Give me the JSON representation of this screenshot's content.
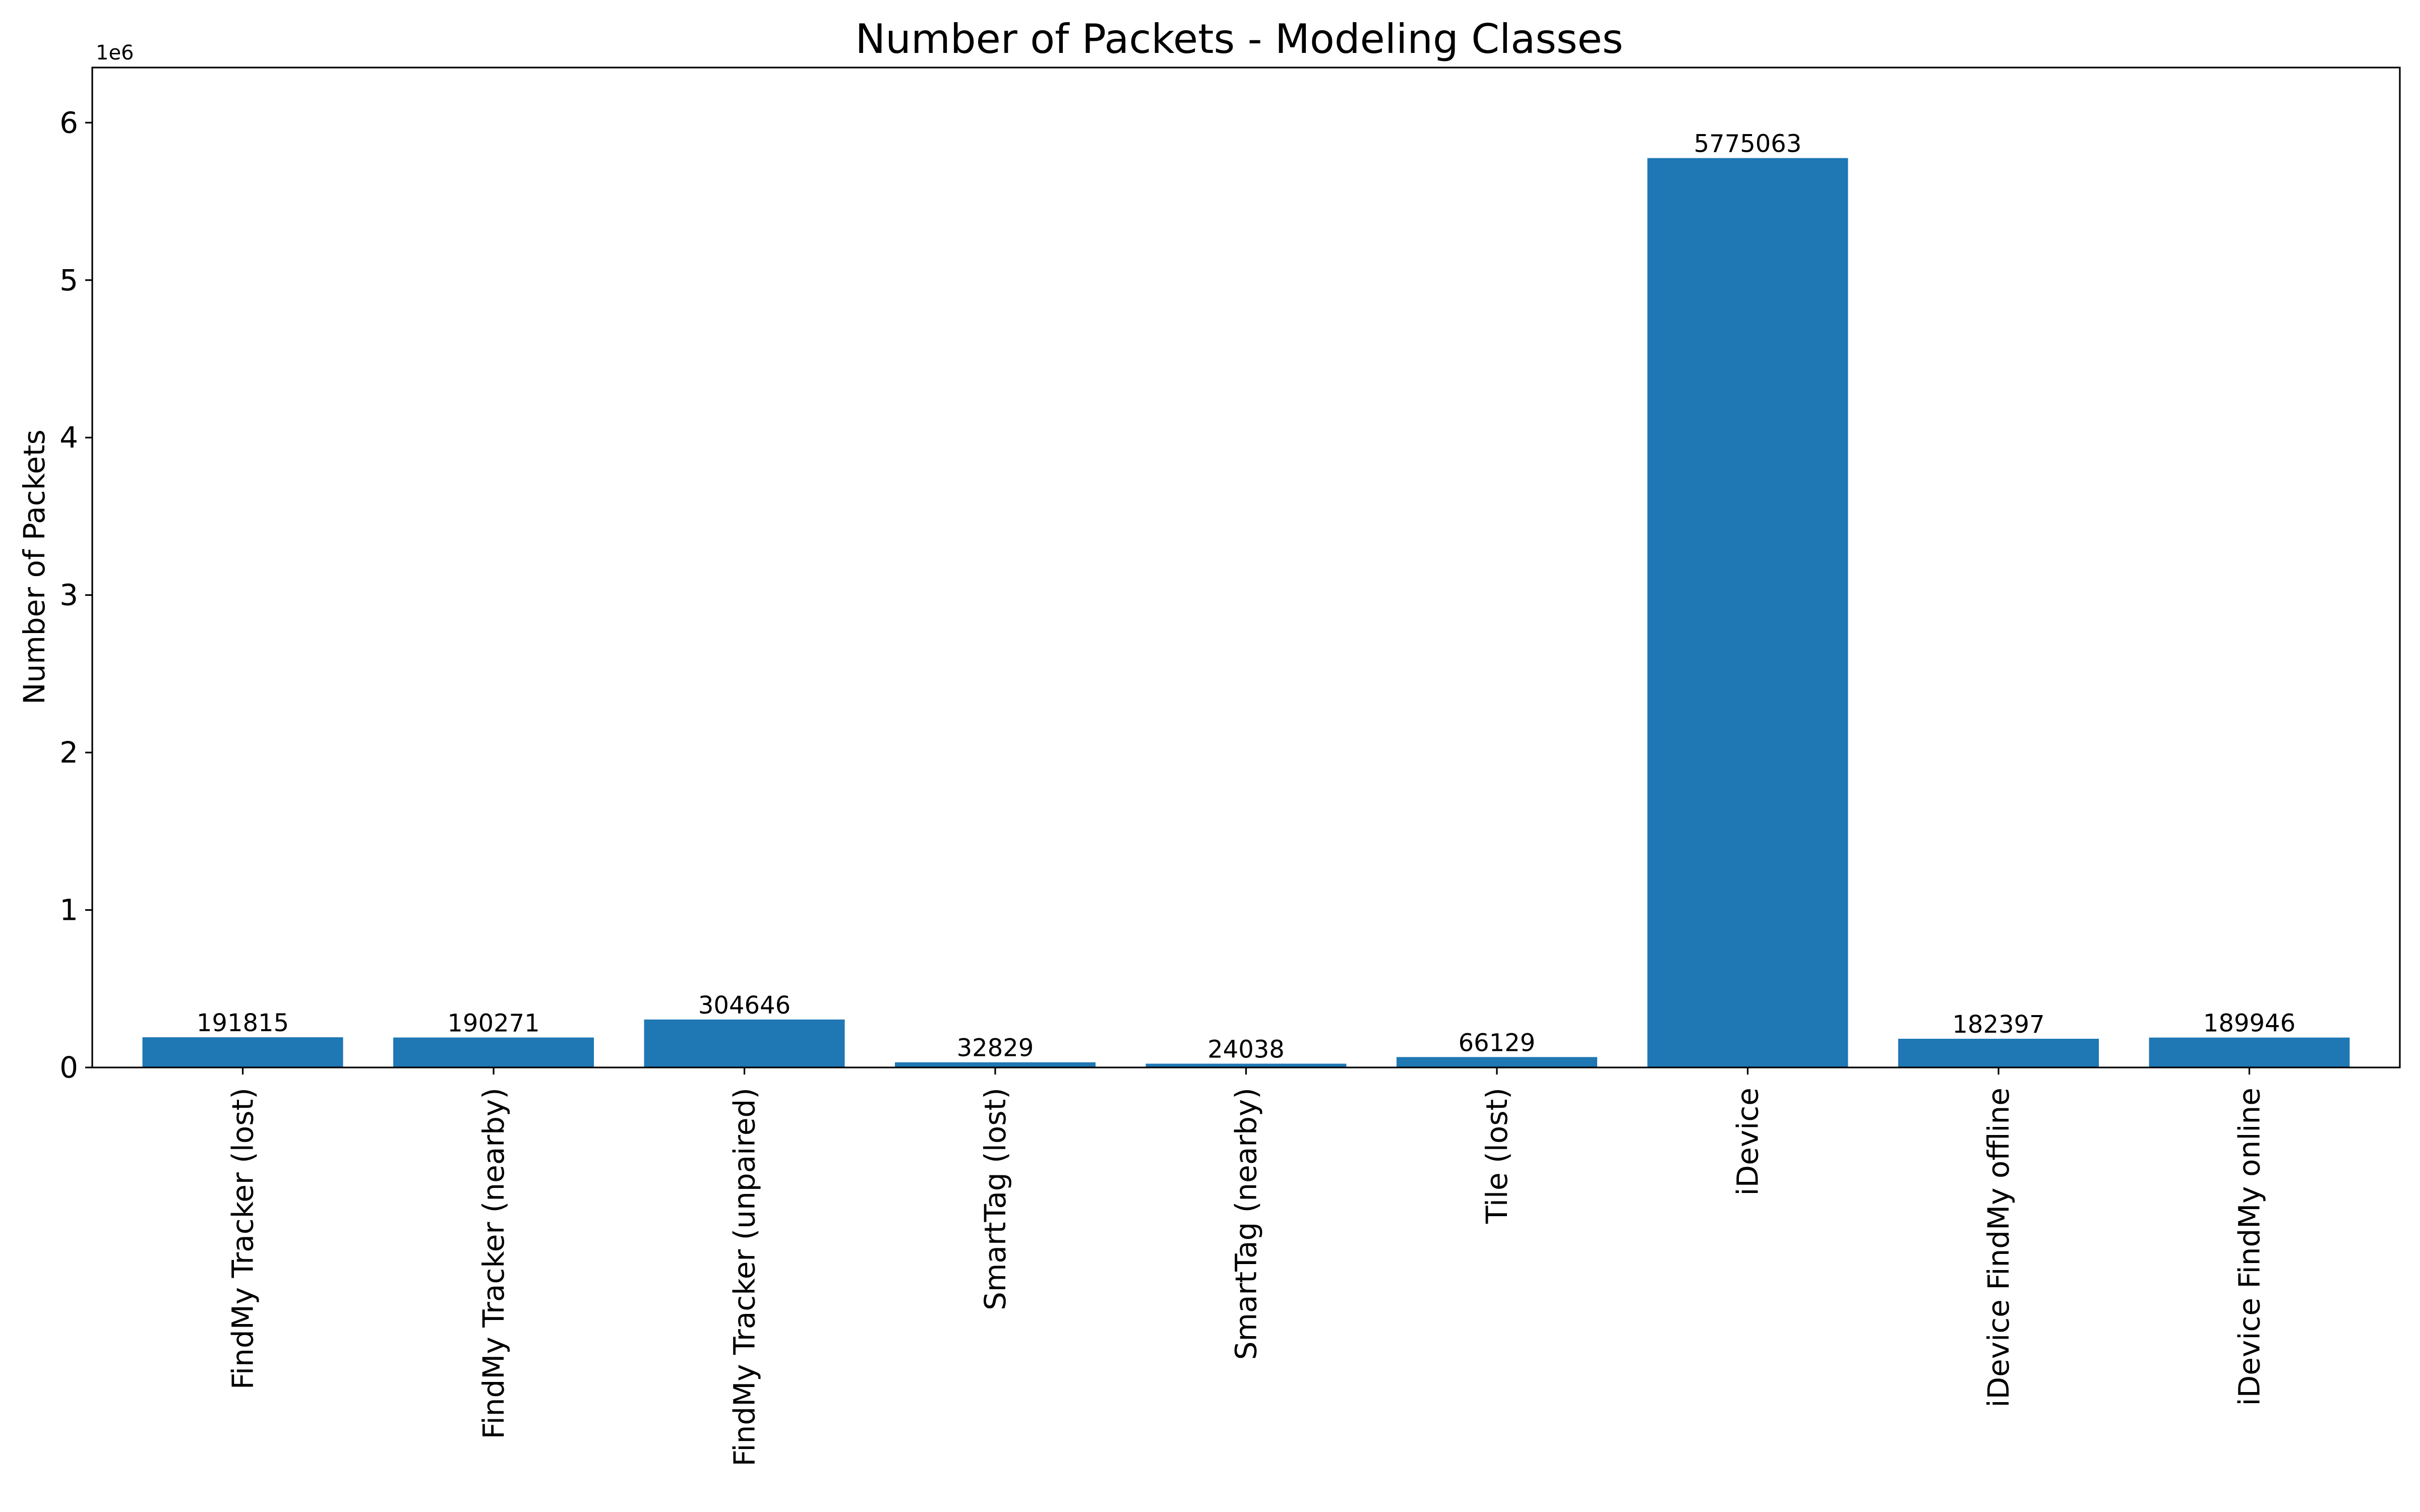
{
  "chart_data": {
    "type": "bar",
    "title": "Number of Packets - Modeling Classes",
    "xlabel": "",
    "ylabel": "Number of Packets",
    "y_offset_label": "1e6",
    "categories": [
      "FindMy Tracker (lost)",
      "FindMy Tracker (nearby)",
      "FindMy Tracker (unpaired)",
      "SmartTag (lost)",
      "SmartTag (nearby)",
      "Tile (lost)",
      "iDevice",
      "iDevice FindMy offline",
      "iDevice FindMy online"
    ],
    "values": [
      191815,
      190271,
      304646,
      32829,
      24038,
      66129,
      5775063,
      182397,
      189946
    ],
    "value_labels": [
      "191815",
      "190271",
      "304646",
      "32829",
      "24038",
      "66129",
      "5775063",
      "182397",
      "189946"
    ],
    "ylim": [
      0,
      6350000
    ],
    "yticks": [
      0,
      1000000,
      2000000,
      3000000,
      4000000,
      5000000,
      6000000
    ],
    "ytick_labels": [
      "0",
      "1",
      "2",
      "3",
      "4",
      "5",
      "6"
    ],
    "bar_color": "#1f77b4",
    "grid": false,
    "legend": "none"
  }
}
